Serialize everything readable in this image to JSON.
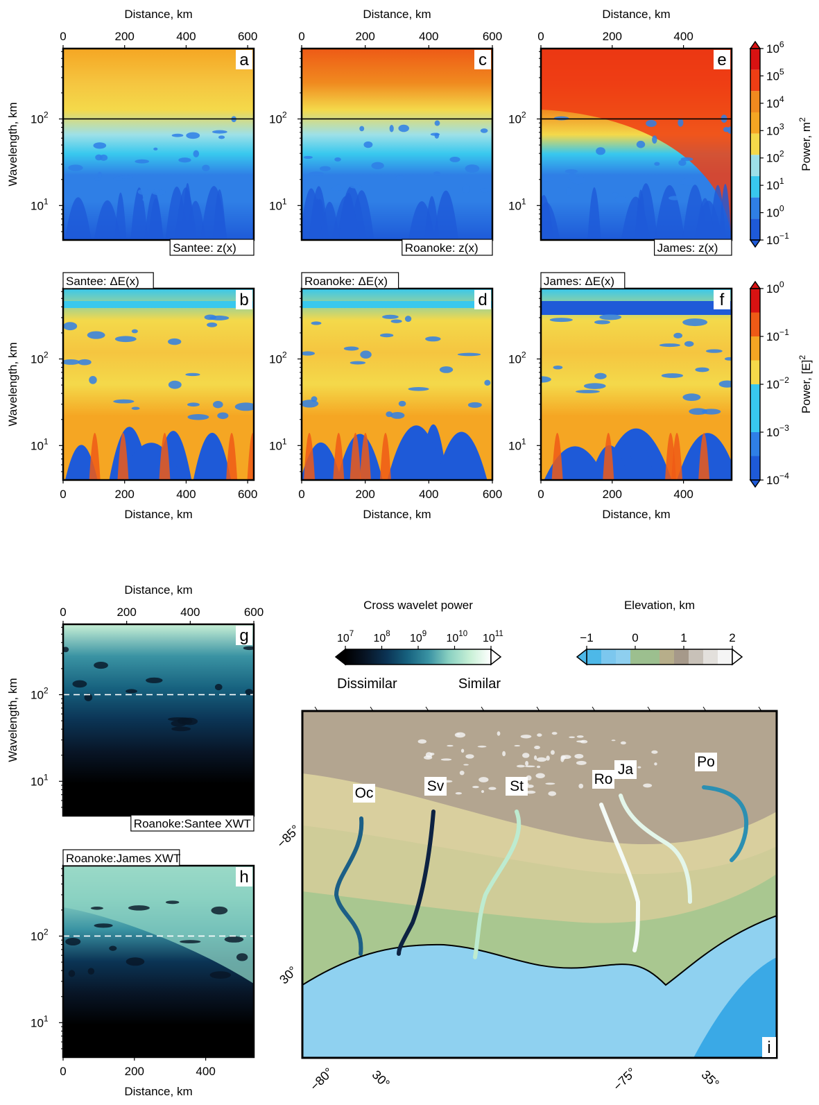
{
  "figure": {
    "colors": {
      "power_ramp": [
        "#1e5ad8",
        "#2f7fe6",
        "#38c8ee",
        "#9de0e8",
        "#f4d94a",
        "#f5a623",
        "#ee5a16",
        "#d81212"
      ],
      "xwt_ramp": [
        "#000000",
        "#081526",
        "#0b3455",
        "#17627f",
        "#3a93a3",
        "#8bd1c2",
        "#c8f0d6",
        "#ffffff"
      ],
      "elevation_ramp": [
        "#4db8e8",
        "#8ecfef",
        "#9cbf8f",
        "#b7ae8a",
        "#a6998a",
        "#c8c1b8",
        "#e3e0dc",
        "#f5f5f5"
      ],
      "sea": "#8fd1f0",
      "coastal_plain": "#a9c790",
      "piedmont": "#d9cf9e",
      "mountains": "#b3a590"
    },
    "panels_top": [
      {
        "letter": "a",
        "caption": "Santee: z(x)",
        "caption_position": "bottom-right",
        "x_ticks": [
          "0",
          "200",
          "400",
          "600"
        ],
        "xlim": [
          0,
          620
        ],
        "x_axis_label_position": "top",
        "x_axis_label": "Distance, km"
      },
      {
        "letter": "c",
        "caption": "Roanoke: z(x)",
        "caption_position": "bottom-right",
        "x_ticks": [
          "0",
          "200",
          "400",
          "600"
        ],
        "xlim": [
          0,
          600
        ],
        "x_axis_label_position": "top",
        "x_axis_label": "Distance, km"
      },
      {
        "letter": "e",
        "caption": "James: z(x)",
        "caption_position": "bottom-right",
        "x_ticks": [
          "0",
          "200",
          "400"
        ],
        "xlim": [
          0,
          535
        ],
        "x_axis_label_position": "top",
        "x_axis_label": "Distance, km"
      }
    ],
    "panels_mid": [
      {
        "letter": "b",
        "caption": "Santee: ΔE(x)",
        "caption_position": "top-left",
        "x_ticks": [
          "0",
          "200",
          "400",
          "600"
        ],
        "xlim": [
          0,
          620
        ],
        "x_axis_label_position": "bottom",
        "x_axis_label": "Distance, km"
      },
      {
        "letter": "d",
        "caption": "Roanoke: ΔE(x)",
        "caption_position": "top-left",
        "x_ticks": [
          "0",
          "200",
          "400",
          "600"
        ],
        "xlim": [
          0,
          600
        ],
        "x_axis_label_position": "bottom",
        "x_axis_label": "Distance, km"
      },
      {
        "letter": "f",
        "caption": "James: ΔE(x)",
        "caption_position": "top-left",
        "x_ticks": [
          "0",
          "200",
          "400"
        ],
        "xlim": [
          0,
          535
        ],
        "x_axis_label_position": "bottom",
        "x_axis_label": "Distance, km"
      }
    ],
    "panels_xwt": [
      {
        "letter": "g",
        "caption": "Roanoke:Santee XWT",
        "caption_position": "bottom-right",
        "x_ticks": [
          "0",
          "200",
          "400",
          "600"
        ],
        "xlim": [
          0,
          600
        ],
        "x_axis_label_position": "top",
        "x_axis_label": "Distance, km"
      },
      {
        "letter": "h",
        "caption": "Roanoke:James XWT",
        "caption_position": "top-left",
        "x_ticks": [
          "0",
          "200",
          "400"
        ],
        "xlim": [
          0,
          535
        ],
        "x_axis_label_position": "bottom",
        "x_axis_label": "Distance, km"
      }
    ],
    "y_axis": {
      "label": "Wavelength, km",
      "tick_base": "10",
      "tick_exponents": [
        "2",
        "1"
      ],
      "ylim_km": [
        4,
        650
      ],
      "reference_line_km": 100
    },
    "colorbar_z": {
      "label": "Power, m",
      "label_sup": "2",
      "base": "10",
      "exponents": [
        "6",
        "5",
        "4",
        "3",
        "2",
        "1",
        "0",
        "−1"
      ]
    },
    "colorbar_e": {
      "label": "Power, [E]",
      "label_sup": "2",
      "base": "10",
      "exponents": [
        "0",
        "−1",
        "−2",
        "−3",
        "−4"
      ]
    },
    "colorbar_xwt": {
      "title": "Cross wavelet power",
      "base": "10",
      "exponents": [
        "7",
        "8",
        "9",
        "10",
        "11"
      ],
      "low_label": "Dissimilar",
      "high_label": "Similar"
    },
    "colorbar_elev": {
      "title": "Elevation, km",
      "ticks": [
        "−1",
        "0",
        "1",
        "2"
      ]
    },
    "map": {
      "letter": "i",
      "rivers": [
        {
          "label": "Oc",
          "color": "#1c5f86"
        },
        {
          "label": "Sv",
          "color": "#0d2242"
        },
        {
          "label": "St",
          "color": "#bdebd0"
        },
        {
          "label": "Ro",
          "color": "#f4fbf7"
        },
        {
          "label": "Ja",
          "color": "#e3f6ea"
        },
        {
          "label": "Po",
          "color": "#2b8fb2"
        }
      ],
      "grid_labels": [
        "−85°",
        "30°",
        "−80°",
        "30°",
        "−75°",
        "35°"
      ]
    }
  },
  "chart_data": [
    {
      "type": "heatmap",
      "panel": "a",
      "title": "Santee: z(x)",
      "xlabel": "Distance, km",
      "ylabel": "Wavelength, km",
      "xlim": [
        0,
        620
      ],
      "ylim": [
        4,
        650
      ],
      "y_scale": "log",
      "color_scale": "Power, m2 (10^-1 to 10^6, log)",
      "reference_line_y": 100
    },
    {
      "type": "heatmap",
      "panel": "b",
      "title": "Santee: ΔE(x)",
      "xlabel": "Distance, km",
      "ylabel": "Wavelength, km",
      "xlim": [
        0,
        620
      ],
      "ylim": [
        4,
        650
      ],
      "y_scale": "log",
      "color_scale": "Power, [E]2 (10^-4 to 10^0, log)"
    },
    {
      "type": "heatmap",
      "panel": "c",
      "title": "Roanoke: z(x)",
      "xlabel": "Distance, km",
      "ylabel": "Wavelength, km",
      "xlim": [
        0,
        600
      ],
      "ylim": [
        4,
        650
      ],
      "y_scale": "log",
      "color_scale": "Power, m2 (10^-1 to 10^6, log)",
      "reference_line_y": 100
    },
    {
      "type": "heatmap",
      "panel": "d",
      "title": "Roanoke: ΔE(x)",
      "xlabel": "Distance, km",
      "ylabel": "Wavelength, km",
      "xlim": [
        0,
        600
      ],
      "ylim": [
        4,
        650
      ],
      "y_scale": "log",
      "color_scale": "Power, [E]2 (10^-4 to 10^0, log)"
    },
    {
      "type": "heatmap",
      "panel": "e",
      "title": "James: z(x)",
      "xlabel": "Distance, km",
      "ylabel": "Wavelength, km",
      "xlim": [
        0,
        535
      ],
      "ylim": [
        4,
        650
      ],
      "y_scale": "log",
      "color_scale": "Power, m2 (10^-1 to 10^6, log)",
      "reference_line_y": 100
    },
    {
      "type": "heatmap",
      "panel": "f",
      "title": "James: ΔE(x)",
      "xlabel": "Distance, km",
      "ylabel": "Wavelength, km",
      "xlim": [
        0,
        535
      ],
      "ylim": [
        4,
        650
      ],
      "y_scale": "log",
      "color_scale": "Power, [E]2 (10^-4 to 10^0, log)"
    },
    {
      "type": "heatmap",
      "panel": "g",
      "title": "Roanoke:Santee XWT",
      "xlabel": "Distance, km",
      "ylabel": "Wavelength, km",
      "xlim": [
        0,
        600
      ],
      "ylim": [
        4,
        650
      ],
      "y_scale": "log",
      "color_scale": "Cross wavelet power (10^7 to 10^11, log)",
      "reference_line_y": 100
    },
    {
      "type": "heatmap",
      "panel": "h",
      "title": "Roanoke:James XWT",
      "xlabel": "Distance, km",
      "ylabel": "Wavelength, km",
      "xlim": [
        0,
        535
      ],
      "ylim": [
        4,
        650
      ],
      "y_scale": "log",
      "color_scale": "Cross wavelet power (10^7 to 10^11, log)",
      "reference_line_y": 100
    }
  ]
}
